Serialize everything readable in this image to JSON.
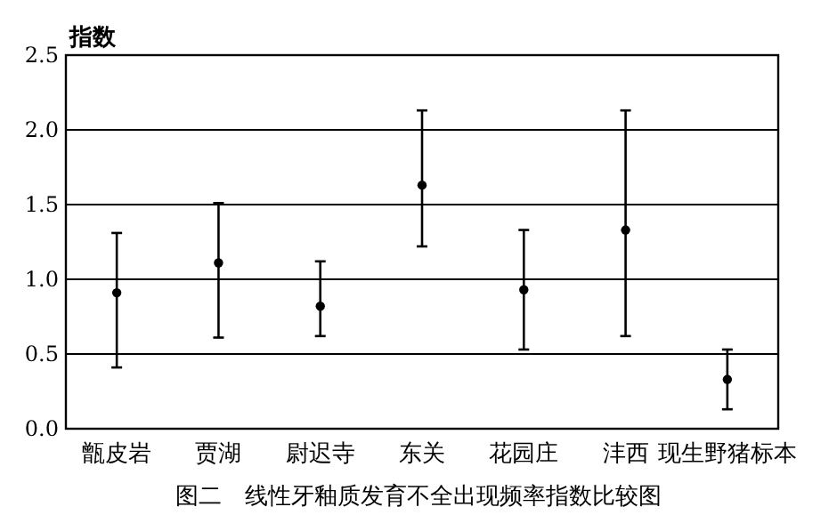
{
  "chart_data": {
    "type": "scatter",
    "ylabel": "指数",
    "categories": [
      "甑皮岩",
      "贾湖",
      "尉迟寺",
      "东关",
      "花园庄",
      "沣西",
      "现生野猪标本"
    ],
    "values": [
      0.91,
      1.11,
      0.82,
      1.63,
      0.93,
      1.33,
      0.33
    ],
    "errors": [
      [
        0.41,
        1.31
      ],
      [
        0.61,
        1.51
      ],
      [
        0.62,
        1.12
      ],
      [
        1.22,
        2.13
      ],
      [
        0.53,
        1.33
      ],
      [
        0.62,
        2.13
      ],
      [
        0.13,
        0.53
      ]
    ],
    "color": "#000000",
    "marker": "circle",
    "grid": "y",
    "ylim": [
      0,
      2.5
    ],
    "yticks": [
      {
        "value": 0,
        "label": "0.0"
      },
      0.5,
      {
        "value": 1,
        "label": "1.0"
      },
      1.5,
      {
        "value": 2,
        "label": "2.0"
      },
      2.5
    ],
    "annotations": [
      "图二　线性牙釉质发育不全出现频率指数比较图"
    ]
  }
}
